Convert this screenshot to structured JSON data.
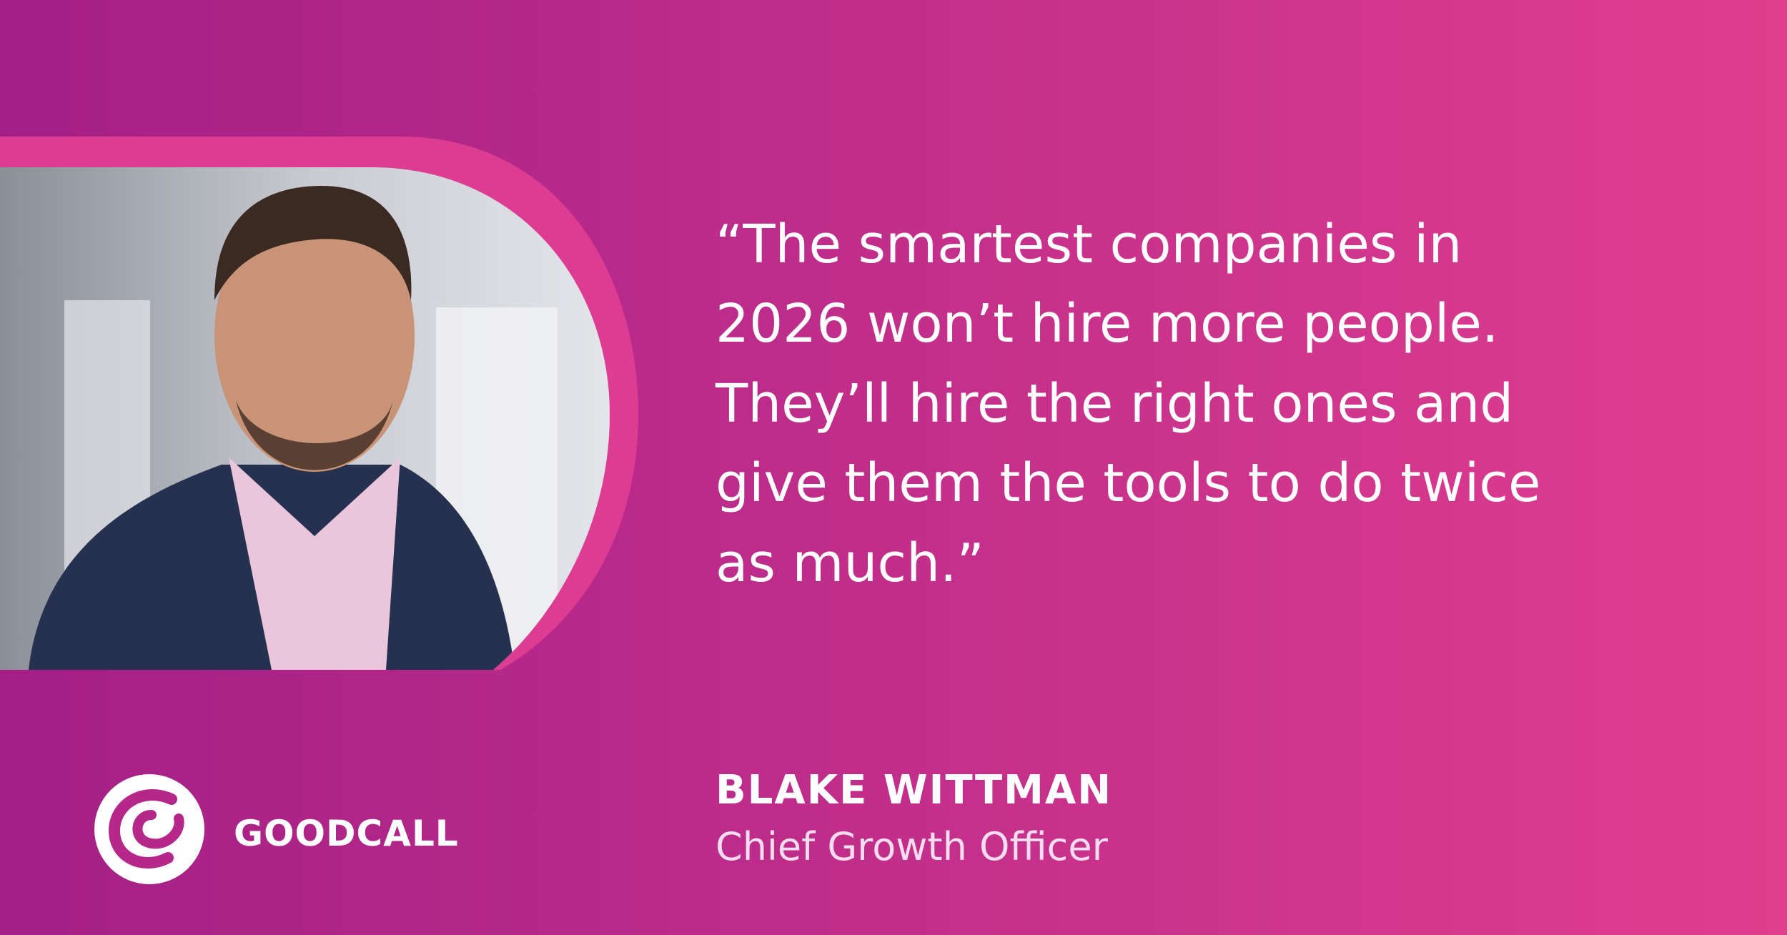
{
  "quote": {
    "lines": [
      "“The smartest companies in",
      "2026 won’t hire more people.",
      "They’ll hire the right ones and",
      "give them the tools to do twice",
      "as much.”"
    ]
  },
  "author": {
    "name": "BLAKE WITTMAN",
    "title": "Chief Growth Officer"
  },
  "brand": {
    "name": "GOODCALL"
  }
}
